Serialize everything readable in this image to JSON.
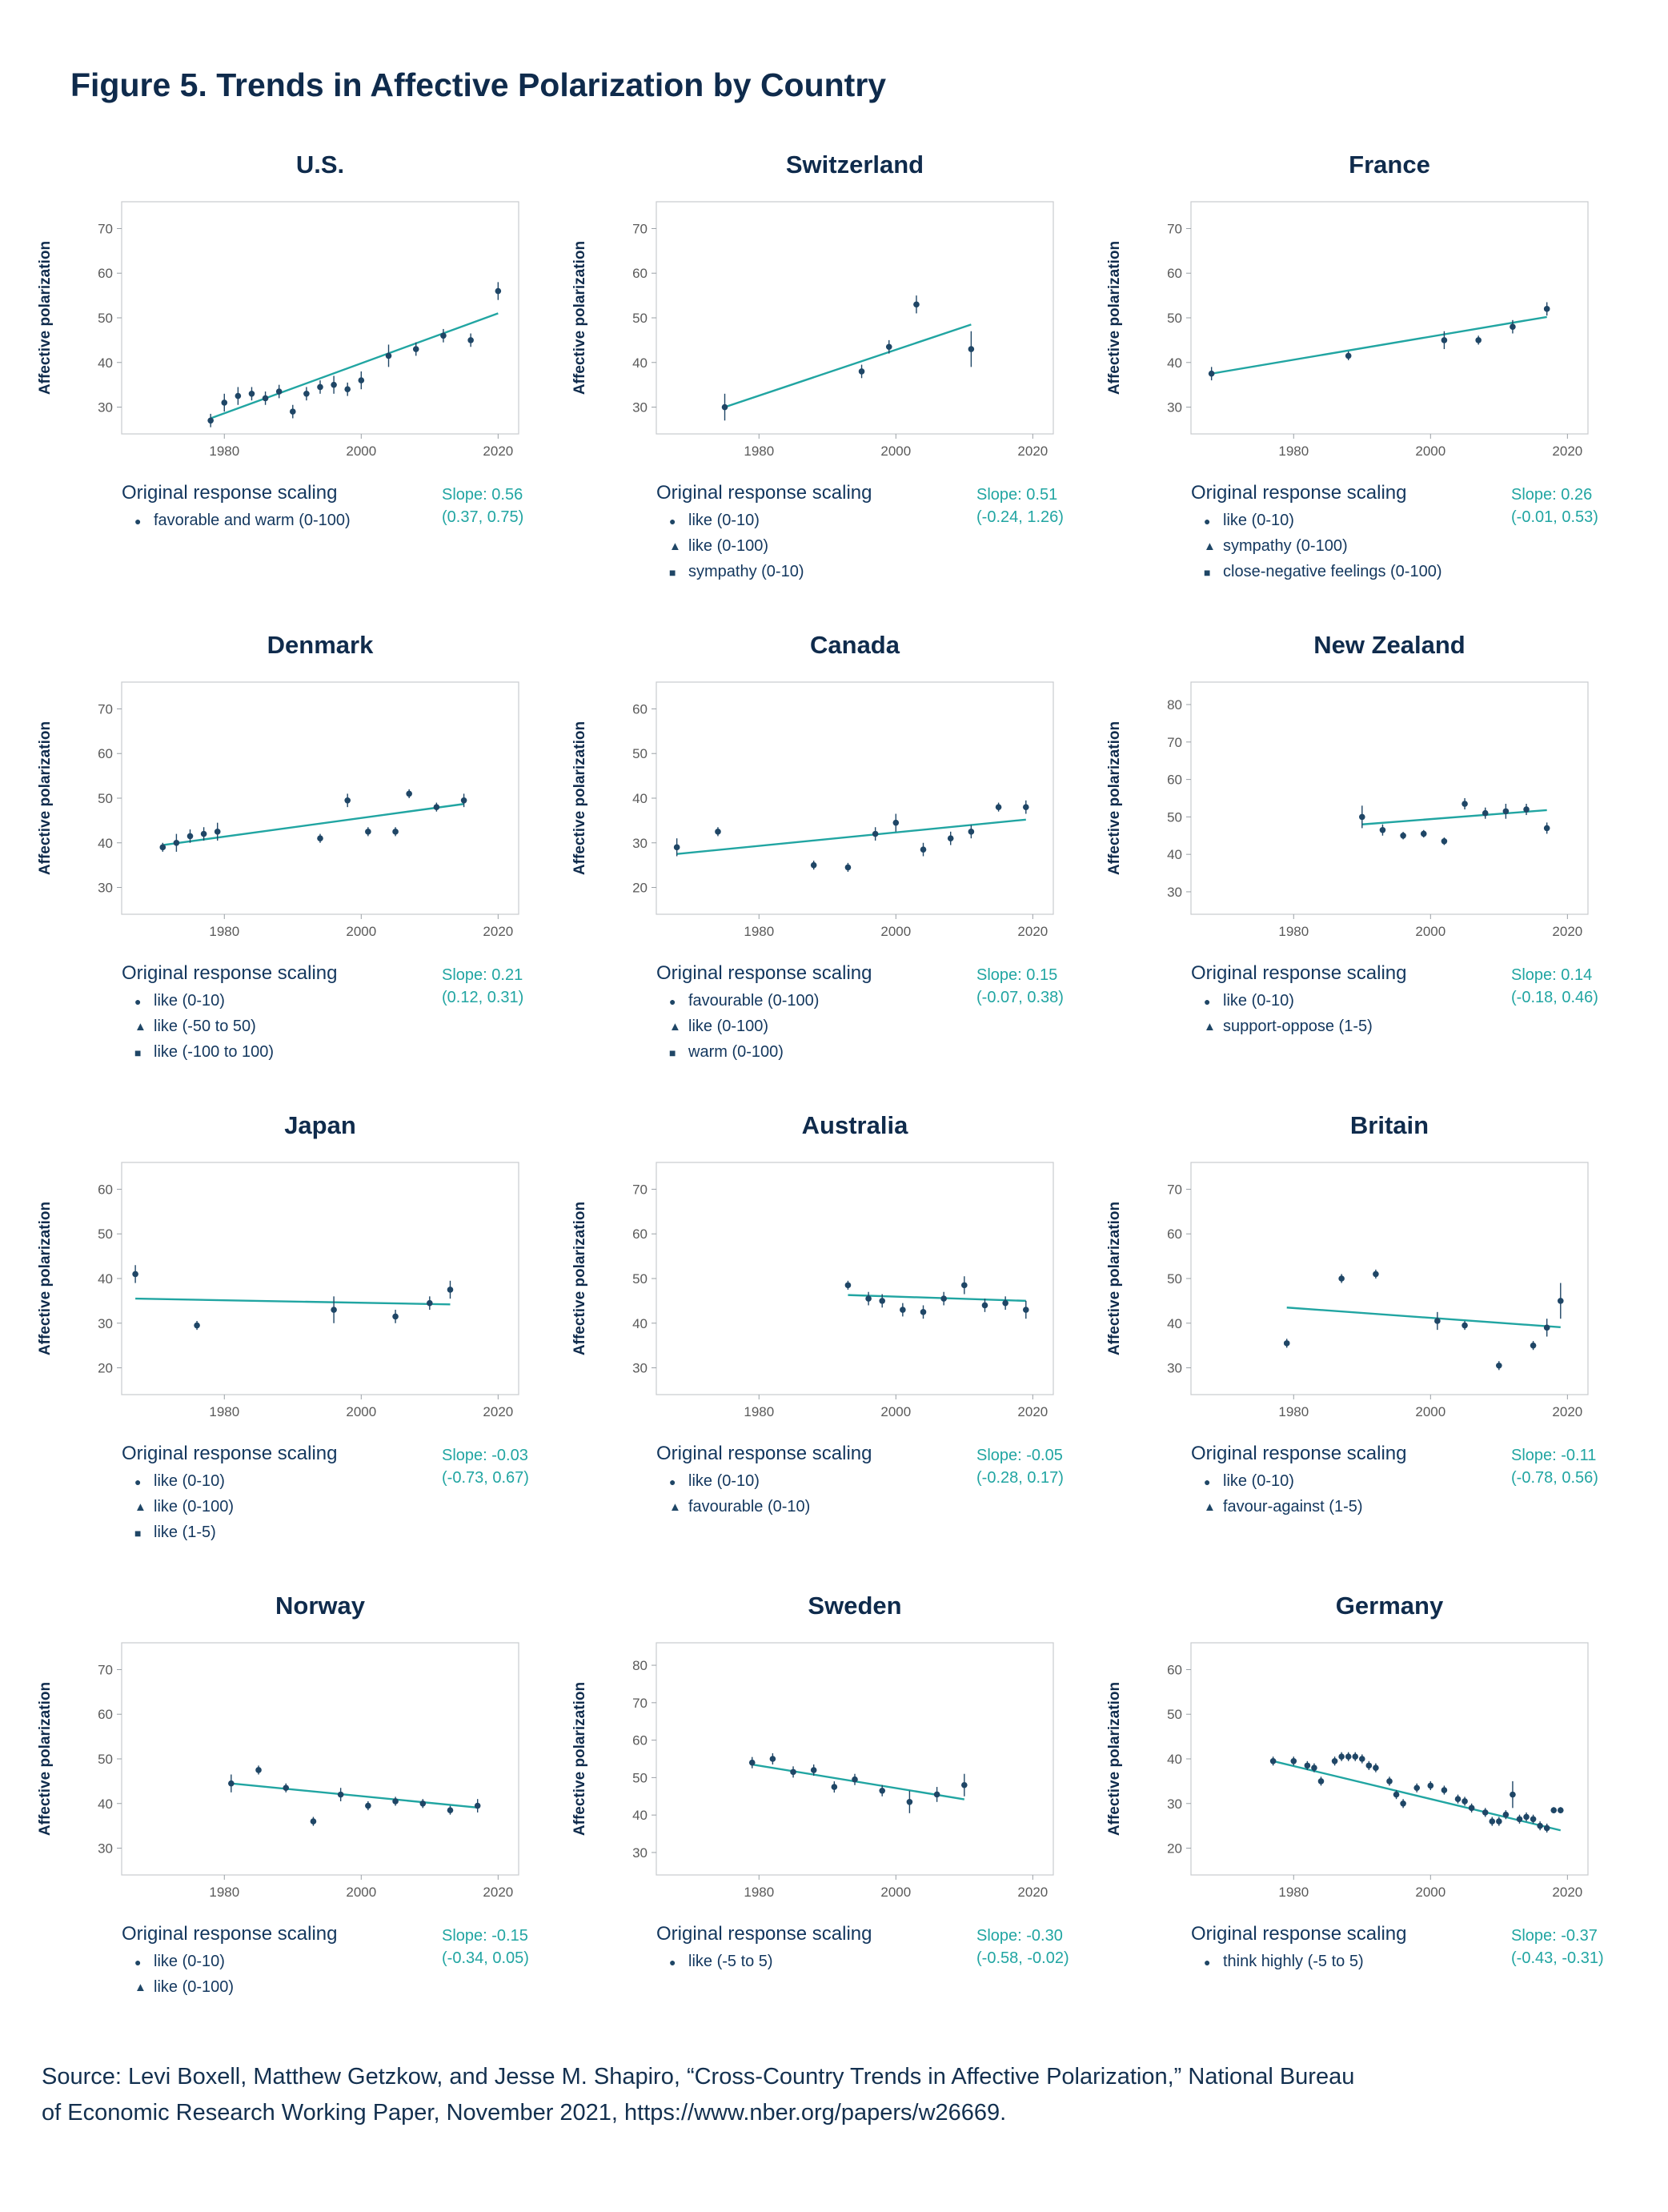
{
  "figure_title": "Figure 5. Trends in Affective Polarization by Country",
  "ylabel": "Affective polarization",
  "legend_title": "Original response scaling",
  "source": {
    "line1": "Source: Levi Boxell, Matthew Getzkow, and Jesse M. Shapiro, “Cross-Country Trends in Affective Polarization,” National Bureau",
    "line2": "of Economic Research Working Paper, November 2021, https://www.nber.org/papers/w26669."
  },
  "colors": {
    "point": "#1f4666",
    "trend": "#21a5a2",
    "slope_text": "#21a5a2",
    "title": "#0f2b4c",
    "tick_text": "#5a5a5a",
    "frame": "#c9cbce"
  },
  "chart_data": [
    {
      "type": "scatter",
      "title": "U.S.",
      "slope_label": "Slope: 0.56",
      "slope_ci": "(0.37, 0.75)",
      "legend": [
        {
          "marker": "circle",
          "label": "favorable and warm (0-100)"
        }
      ],
      "xlim": [
        1965,
        2023
      ],
      "xticks": [
        1980,
        2000,
        2020
      ],
      "ylim": [
        24,
        76
      ],
      "yticks": [
        30,
        40,
        50,
        60,
        70
      ],
      "points": [
        [
          1978,
          27,
          1.5
        ],
        [
          1980,
          31,
          2
        ],
        [
          1982,
          32.5,
          2
        ],
        [
          1984,
          33,
          1.5
        ],
        [
          1986,
          32,
          1.5
        ],
        [
          1988,
          33.5,
          1.5
        ],
        [
          1990,
          29,
          1.5
        ],
        [
          1992,
          33,
          1.5
        ],
        [
          1994,
          34.5,
          1.5
        ],
        [
          1996,
          35,
          2
        ],
        [
          1998,
          34,
          1.5
        ],
        [
          2000,
          36,
          2
        ],
        [
          2004,
          41.5,
          2.5
        ],
        [
          2008,
          43,
          1.5
        ],
        [
          2012,
          46,
          1.5
        ],
        [
          2016,
          45,
          1.5
        ],
        [
          2020,
          56,
          2
        ]
      ],
      "trend": {
        "x1": 1978,
        "y1": 27.5,
        "x2": 2020,
        "y2": 51
      }
    },
    {
      "type": "scatter",
      "title": "Switzerland",
      "slope_label": "Slope: 0.51",
      "slope_ci": "(-0.24, 1.26)",
      "legend": [
        {
          "marker": "circle",
          "label": "like (0-10)"
        },
        {
          "marker": "triangle",
          "label": "like (0-100)"
        },
        {
          "marker": "square",
          "label": "sympathy (0-10)"
        }
      ],
      "xlim": [
        1965,
        2023
      ],
      "xticks": [
        1980,
        2000,
        2020
      ],
      "ylim": [
        24,
        76
      ],
      "yticks": [
        30,
        40,
        50,
        60,
        70
      ],
      "points": [
        [
          1975,
          30,
          3
        ],
        [
          1995,
          38,
          1.5
        ],
        [
          1999,
          43.5,
          1.5
        ],
        [
          2003,
          53,
          2
        ],
        [
          2011,
          43,
          4
        ]
      ],
      "trend": {
        "x1": 1975,
        "y1": 30,
        "x2": 2011,
        "y2": 48.5
      }
    },
    {
      "type": "scatter",
      "title": "France",
      "slope_label": "Slope: 0.26",
      "slope_ci": "(-0.01, 0.53)",
      "legend": [
        {
          "marker": "circle",
          "label": "like (0-10)"
        },
        {
          "marker": "triangle",
          "label": "sympathy (0-100)"
        },
        {
          "marker": "square",
          "label": "close-negative feelings (0-100)"
        }
      ],
      "xlim": [
        1965,
        2023
      ],
      "xticks": [
        1980,
        2000,
        2020
      ],
      "ylim": [
        24,
        76
      ],
      "yticks": [
        30,
        40,
        50,
        60,
        70
      ],
      "points": [
        [
          1968,
          37.5,
          1.5
        ],
        [
          1988,
          41.5,
          1
        ],
        [
          2002,
          45,
          2
        ],
        [
          2007,
          45,
          1
        ],
        [
          2012,
          48,
          1.5
        ],
        [
          2017,
          52,
          1.5
        ]
      ],
      "trend": {
        "x1": 1968,
        "y1": 37.5,
        "x2": 2017,
        "y2": 50.2
      }
    },
    {
      "type": "scatter",
      "title": "Denmark",
      "slope_label": "Slope: 0.21",
      "slope_ci": "(0.12, 0.31)",
      "legend": [
        {
          "marker": "circle",
          "label": "like (0-10)"
        },
        {
          "marker": "triangle",
          "label": "like (-50 to 50)"
        },
        {
          "marker": "square",
          "label": "like (-100 to 100)"
        }
      ],
      "xlim": [
        1965,
        2023
      ],
      "xticks": [
        1980,
        2000,
        2020
      ],
      "ylim": [
        24,
        76
      ],
      "yticks": [
        30,
        40,
        50,
        60,
        70
      ],
      "points": [
        [
          1971,
          39,
          1
        ],
        [
          1973,
          40,
          2
        ],
        [
          1975,
          41.5,
          1.5
        ],
        [
          1977,
          42,
          1.5
        ],
        [
          1979,
          42.5,
          2
        ],
        [
          1994,
          41,
          1
        ],
        [
          1998,
          49.5,
          1.5
        ],
        [
          2001,
          42.5,
          1
        ],
        [
          2005,
          42.5,
          1
        ],
        [
          2007,
          51,
          1
        ],
        [
          2011,
          48,
          1
        ],
        [
          2015,
          49.5,
          1.5
        ]
      ],
      "trend": {
        "x1": 1971,
        "y1": 39.5,
        "x2": 2015,
        "y2": 48.7
      }
    },
    {
      "type": "scatter",
      "title": "Canada",
      "slope_label": "Slope: 0.15",
      "slope_ci": "(-0.07, 0.38)",
      "legend": [
        {
          "marker": "circle",
          "label": "favourable (0-100)"
        },
        {
          "marker": "triangle",
          "label": "like (0-100)"
        },
        {
          "marker": "square",
          "label": "warm (0-100)"
        }
      ],
      "xlim": [
        1965,
        2023
      ],
      "xticks": [
        1980,
        2000,
        2020
      ],
      "ylim": [
        14,
        66
      ],
      "yticks": [
        20,
        30,
        40,
        50,
        60
      ],
      "points": [
        [
          1968,
          29,
          2
        ],
        [
          1974,
          32.5,
          1
        ],
        [
          1988,
          25,
          1
        ],
        [
          1993,
          24.5,
          1
        ],
        [
          1997,
          32,
          1.5
        ],
        [
          2000,
          34.5,
          2
        ],
        [
          2004,
          28.5,
          1.5
        ],
        [
          2008,
          31,
          1.5
        ],
        [
          2011,
          32.5,
          1.5
        ],
        [
          2015,
          38,
          1
        ],
        [
          2019,
          38,
          1.5
        ]
      ],
      "trend": {
        "x1": 1968,
        "y1": 27.5,
        "x2": 2019,
        "y2": 35.2
      }
    },
    {
      "type": "scatter",
      "title": "New Zealand",
      "slope_label": "Slope: 0.14",
      "slope_ci": "(-0.18, 0.46)",
      "legend": [
        {
          "marker": "circle",
          "label": "like (0-10)"
        },
        {
          "marker": "triangle",
          "label": "support-oppose (1-5)"
        }
      ],
      "xlim": [
        1965,
        2023
      ],
      "xticks": [
        1980,
        2000,
        2020
      ],
      "ylim": [
        24,
        86
      ],
      "yticks": [
        30,
        40,
        50,
        60,
        70,
        80
      ],
      "points": [
        [
          1990,
          50,
          3
        ],
        [
          1993,
          46.5,
          1.5
        ],
        [
          1996,
          45,
          1
        ],
        [
          1999,
          45.5,
          1
        ],
        [
          2002,
          43.5,
          1
        ],
        [
          2005,
          53.5,
          1.5
        ],
        [
          2008,
          51,
          1.5
        ],
        [
          2011,
          51.5,
          2
        ],
        [
          2014,
          52,
          1.5
        ],
        [
          2017,
          47,
          1.5
        ]
      ],
      "trend": {
        "x1": 1990,
        "y1": 48,
        "x2": 2017,
        "y2": 51.8
      }
    },
    {
      "type": "scatter",
      "title": "Japan",
      "slope_label": "Slope: -0.03",
      "slope_ci": "(-0.73, 0.67)",
      "legend": [
        {
          "marker": "circle",
          "label": "like (0-10)"
        },
        {
          "marker": "triangle",
          "label": "like (0-100)"
        },
        {
          "marker": "square",
          "label": "like (1-5)"
        }
      ],
      "xlim": [
        1965,
        2023
      ],
      "xticks": [
        1980,
        2000,
        2020
      ],
      "ylim": [
        14,
        66
      ],
      "yticks": [
        20,
        30,
        40,
        50,
        60
      ],
      "points": [
        [
          1967,
          41,
          2
        ],
        [
          1976,
          29.5,
          1
        ],
        [
          1996,
          33,
          3
        ],
        [
          2005,
          31.5,
          1.5
        ],
        [
          2010,
          34.5,
          1.5
        ],
        [
          2013,
          37.5,
          2
        ]
      ],
      "trend": {
        "x1": 1967,
        "y1": 35.5,
        "x2": 2013,
        "y2": 34.2
      }
    },
    {
      "type": "scatter",
      "title": "Australia",
      "slope_label": "Slope: -0.05",
      "slope_ci": "(-0.28, 0.17)",
      "legend": [
        {
          "marker": "circle",
          "label": "like (0-10)"
        },
        {
          "marker": "triangle",
          "label": "favourable (0-10)"
        }
      ],
      "xlim": [
        1965,
        2023
      ],
      "xticks": [
        1980,
        2000,
        2020
      ],
      "ylim": [
        24,
        76
      ],
      "yticks": [
        30,
        40,
        50,
        60,
        70
      ],
      "points": [
        [
          1993,
          48.5,
          1
        ],
        [
          1996,
          45.5,
          1.5
        ],
        [
          1998,
          45,
          1.5
        ],
        [
          2001,
          43,
          1.5
        ],
        [
          2004,
          42.5,
          1.5
        ],
        [
          2007,
          45.5,
          1.5
        ],
        [
          2010,
          48.5,
          2
        ],
        [
          2013,
          44,
          1.5
        ],
        [
          2016,
          44.5,
          1.5
        ],
        [
          2019,
          43,
          2
        ]
      ],
      "trend": {
        "x1": 1993,
        "y1": 46.3,
        "x2": 2019,
        "y2": 45
      }
    },
    {
      "type": "scatter",
      "title": "Britain",
      "slope_label": "Slope: -0.11",
      "slope_ci": "(-0.78, 0.56)",
      "legend": [
        {
          "marker": "circle",
          "label": "like (0-10)"
        },
        {
          "marker": "triangle",
          "label": "favour-against (1-5)"
        }
      ],
      "xlim": [
        1965,
        2023
      ],
      "xticks": [
        1980,
        2000,
        2020
      ],
      "ylim": [
        24,
        76
      ],
      "yticks": [
        30,
        40,
        50,
        60,
        70
      ],
      "points": [
        [
          1979,
          35.5,
          1
        ],
        [
          1987,
          50,
          1
        ],
        [
          1992,
          51,
          1
        ],
        [
          2001,
          40.5,
          2
        ],
        [
          2005,
          39.5,
          1
        ],
        [
          2010,
          30.5,
          1
        ],
        [
          2015,
          35,
          1
        ],
        [
          2017,
          39,
          2
        ],
        [
          2019,
          45,
          4
        ]
      ],
      "trend": {
        "x1": 1979,
        "y1": 43.5,
        "x2": 2019,
        "y2": 39.1
      }
    },
    {
      "type": "scatter",
      "title": "Norway",
      "slope_label": "Slope: -0.15",
      "slope_ci": "(-0.34, 0.05)",
      "legend": [
        {
          "marker": "circle",
          "label": "like (0-10)"
        },
        {
          "marker": "triangle",
          "label": "like (0-100)"
        }
      ],
      "xlim": [
        1965,
        2023
      ],
      "xticks": [
        1980,
        2000,
        2020
      ],
      "ylim": [
        24,
        76
      ],
      "yticks": [
        30,
        40,
        50,
        60,
        70
      ],
      "points": [
        [
          1981,
          44.5,
          2
        ],
        [
          1985,
          47.5,
          1
        ],
        [
          1989,
          43.5,
          1
        ],
        [
          1993,
          36,
          1
        ],
        [
          1997,
          42,
          1.5
        ],
        [
          2001,
          39.5,
          1
        ],
        [
          2005,
          40.5,
          1
        ],
        [
          2009,
          40,
          1
        ],
        [
          2013,
          38.5,
          1
        ],
        [
          2017,
          39.5,
          1.5
        ]
      ],
      "trend": {
        "x1": 1981,
        "y1": 44.5,
        "x2": 2017,
        "y2": 39.1
      }
    },
    {
      "type": "scatter",
      "title": "Sweden",
      "slope_label": "Slope: -0.30",
      "slope_ci": "(-0.58, -0.02)",
      "legend": [
        {
          "marker": "circle",
          "label": "like (-5 to 5)"
        }
      ],
      "xlim": [
        1965,
        2023
      ],
      "xticks": [
        1980,
        2000,
        2020
      ],
      "ylim": [
        24,
        86
      ],
      "yticks": [
        30,
        40,
        50,
        60,
        70,
        80
      ],
      "points": [
        [
          1979,
          54,
          1.5
        ],
        [
          1982,
          55,
          1.5
        ],
        [
          1985,
          51.5,
          1.5
        ],
        [
          1988,
          52,
          1.5
        ],
        [
          1991,
          47.5,
          1.5
        ],
        [
          1994,
          49.5,
          1.5
        ],
        [
          1998,
          46.5,
          1.5
        ],
        [
          2002,
          43.5,
          3
        ],
        [
          2006,
          45.5,
          2
        ],
        [
          2010,
          48,
          3
        ]
      ],
      "trend": {
        "x1": 1979,
        "y1": 53.5,
        "x2": 2010,
        "y2": 44.2
      }
    },
    {
      "type": "scatter",
      "title": "Germany",
      "slope_label": "Slope: -0.37",
      "slope_ci": "(-0.43, -0.31)",
      "legend": [
        {
          "marker": "circle",
          "label": "think highly (-5 to 5)"
        }
      ],
      "xlim": [
        1965,
        2023
      ],
      "xticks": [
        1980,
        2000,
        2020
      ],
      "ylim": [
        14,
        66
      ],
      "yticks": [
        20,
        30,
        40,
        50,
        60
      ],
      "points": [
        [
          1977,
          39.5,
          1
        ],
        [
          1980,
          39.5,
          1
        ],
        [
          1982,
          38.5,
          1
        ],
        [
          1983,
          38,
          1
        ],
        [
          1984,
          35,
          1
        ],
        [
          1986,
          39.5,
          1
        ],
        [
          1987,
          40.5,
          1
        ],
        [
          1988,
          40.5,
          1
        ],
        [
          1989,
          40.5,
          1
        ],
        [
          1990,
          40,
          1
        ],
        [
          1991,
          38.5,
          1
        ],
        [
          1992,
          38,
          1
        ],
        [
          1994,
          35,
          1
        ],
        [
          1995,
          32,
          1
        ],
        [
          1996,
          30,
          1
        ],
        [
          1998,
          33.5,
          1
        ],
        [
          2000,
          34,
          1
        ],
        [
          2002,
          33,
          1
        ],
        [
          2004,
          31,
          1
        ],
        [
          2005,
          30.5,
          1
        ],
        [
          2006,
          29,
          1
        ],
        [
          2008,
          28,
          1
        ],
        [
          2009,
          26,
          1
        ],
        [
          2010,
          26,
          1
        ],
        [
          2011,
          27.5,
          1
        ],
        [
          2012,
          32,
          3
        ],
        [
          2013,
          26.5,
          1
        ],
        [
          2014,
          27,
          1
        ],
        [
          2015,
          26.5,
          1
        ],
        [
          2016,
          25,
          1
        ],
        [
          2017,
          24.5,
          1
        ],
        [
          2018,
          28.5,
          0.7
        ],
        [
          2019,
          28.5,
          0.7
        ]
      ],
      "trend": {
        "x1": 1977,
        "y1": 39.5,
        "x2": 2019,
        "y2": 24
      }
    }
  ]
}
